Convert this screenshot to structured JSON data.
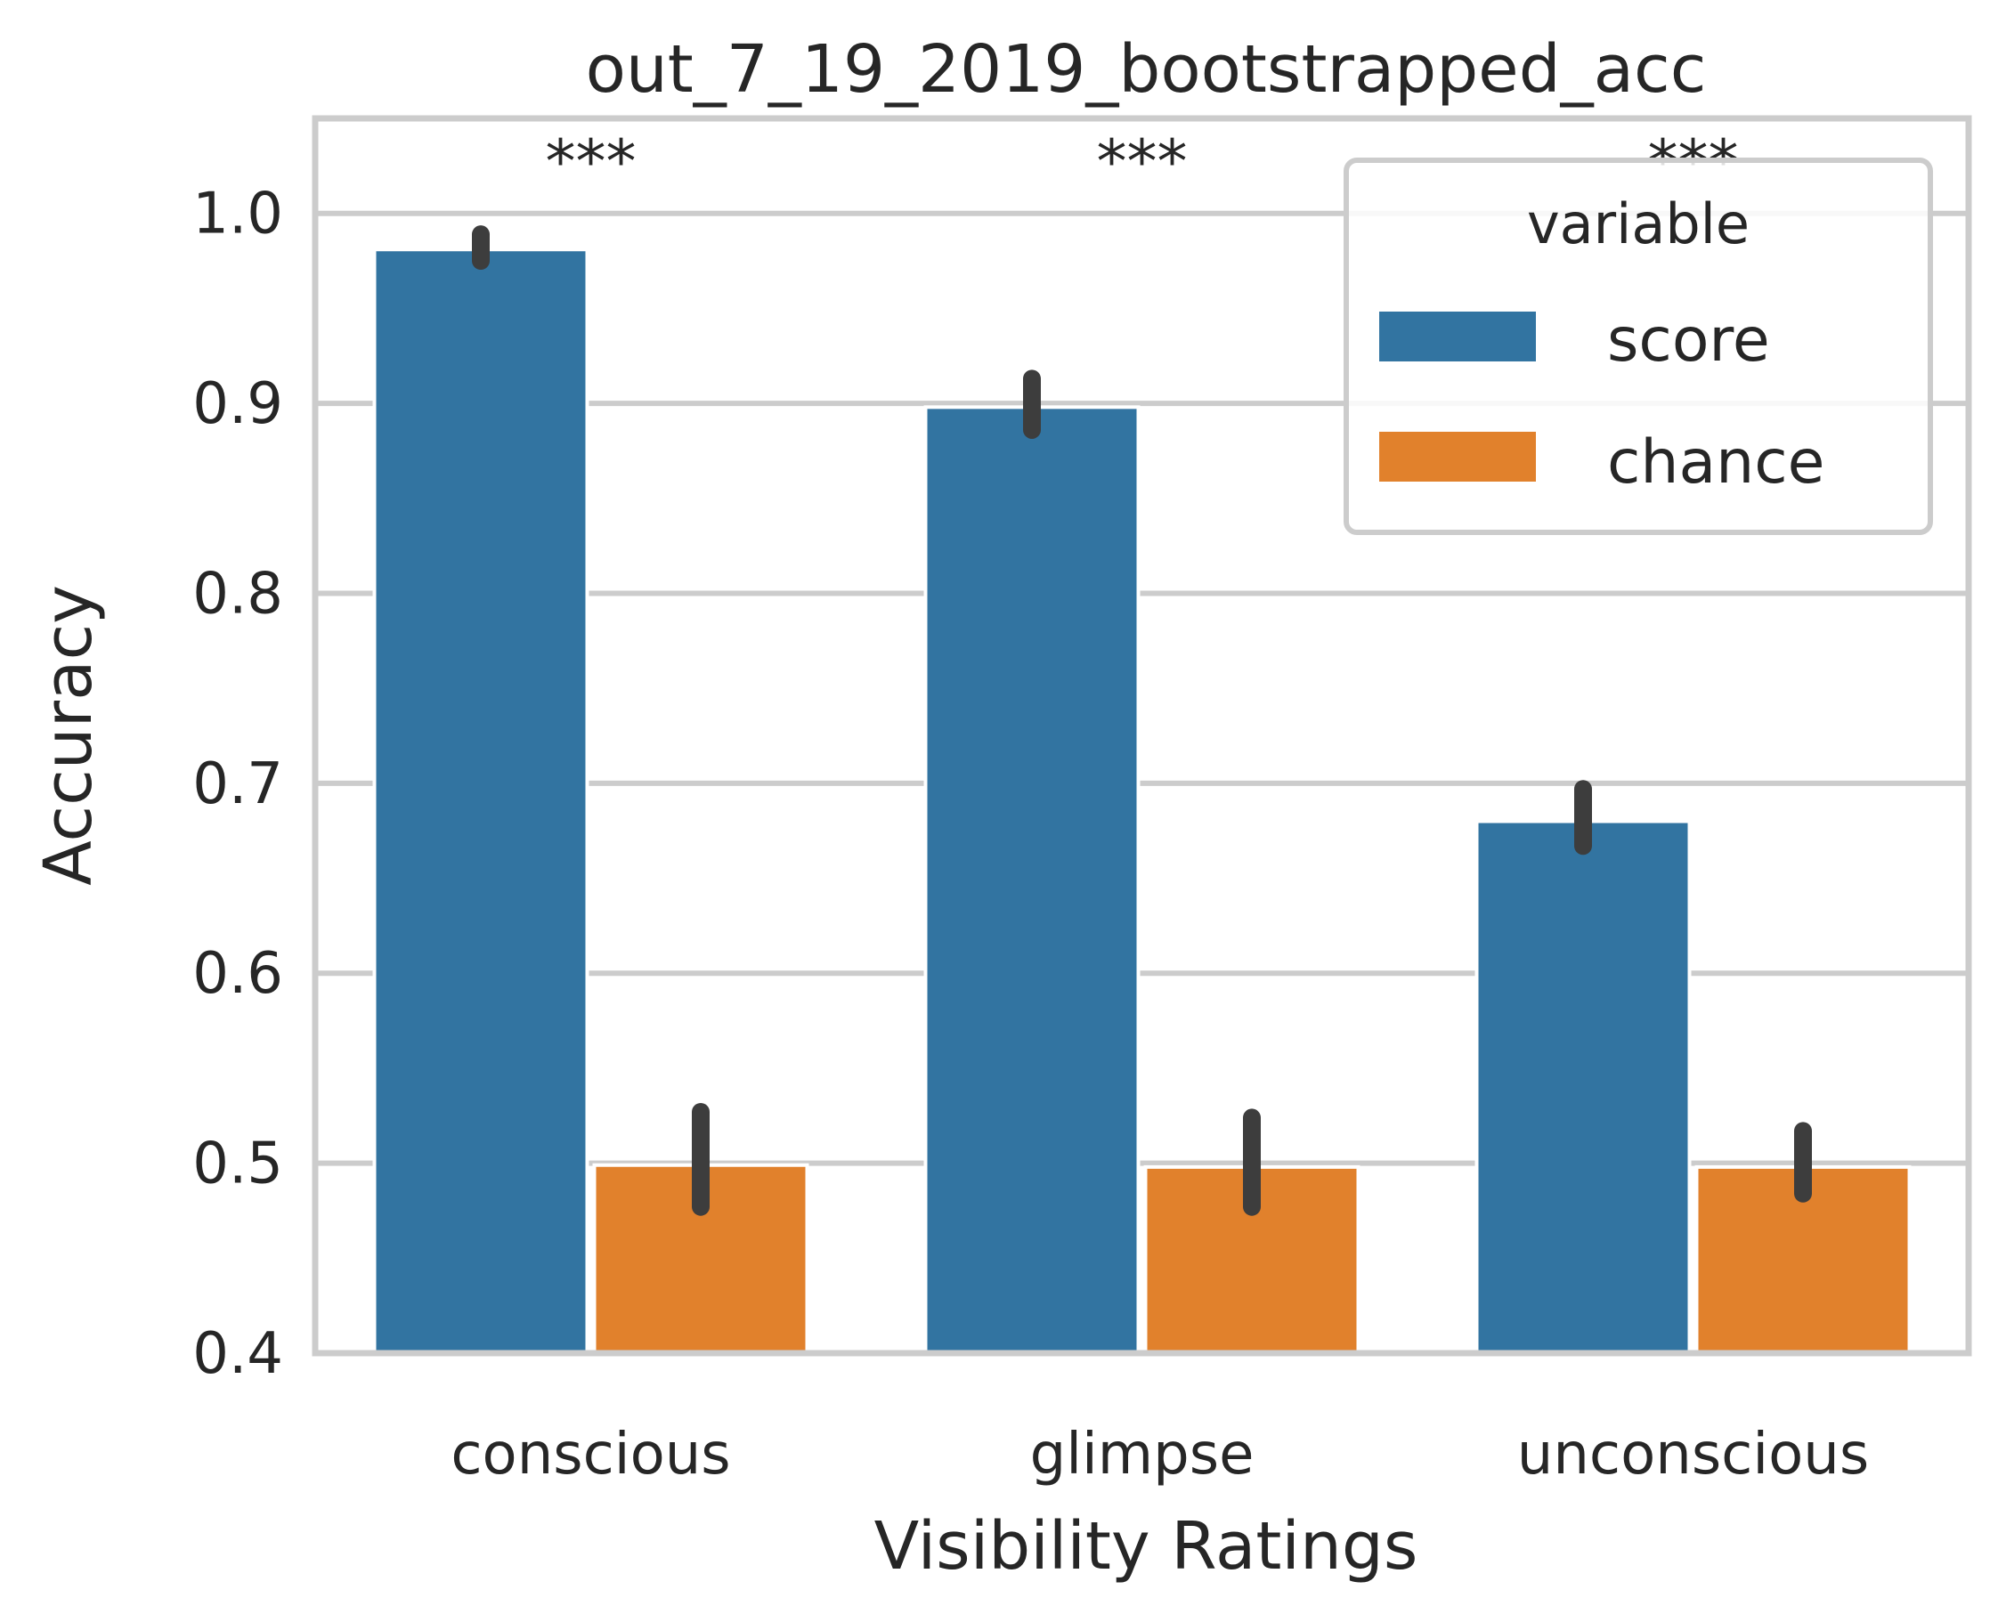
{
  "chart_data": {
    "type": "bar",
    "title": "out_7_19_2019_bootstrapped_acc",
    "xlabel": "Visibility Ratings",
    "ylabel": "Accuracy",
    "categories": [
      "conscious",
      "glimpse",
      "unconscious"
    ],
    "ylim": [
      0.4,
      1.05
    ],
    "yticks": [
      "0.4",
      "0.5",
      "0.6",
      "0.7",
      "0.8",
      "0.9",
      "1.0"
    ],
    "grid": true,
    "legend": {
      "title": "variable",
      "placement": "top-right"
    },
    "series": [
      {
        "name": "score",
        "color": "#3274a1",
        "values": [
          0.981,
          0.898,
          0.68
        ],
        "ci_low": [
          0.975,
          0.886,
          0.667
        ],
        "ci_high": [
          0.989,
          0.913,
          0.697
        ]
      },
      {
        "name": "chance",
        "color": "#e1812c",
        "values": [
          0.499,
          0.498,
          0.498
        ],
        "ci_low": [
          0.477,
          0.477,
          0.484
        ],
        "ci_high": [
          0.527,
          0.524,
          0.517
        ]
      }
    ],
    "annotations": [
      "***",
      "***",
      "***"
    ]
  }
}
